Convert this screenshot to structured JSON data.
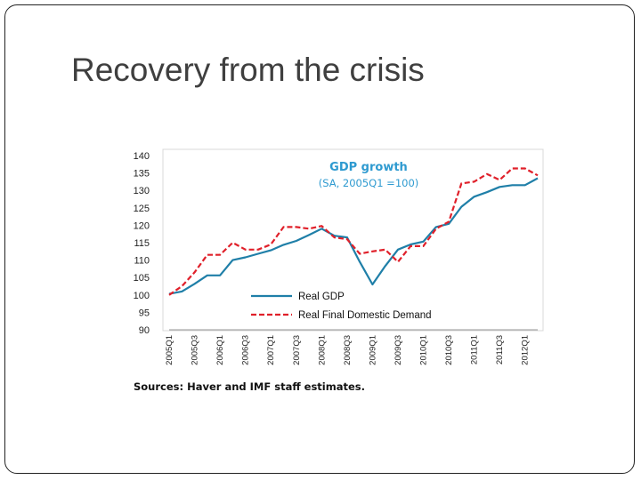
{
  "slide": {
    "title": "Recovery from the crisis"
  },
  "chart_data": {
    "type": "line",
    "title": "GDP growth",
    "subtitle": "(SA, 2005Q1  =100)",
    "title_color": "#2e9ad0",
    "ylim": [
      90,
      140
    ],
    "yticks": [
      90,
      95,
      100,
      105,
      110,
      115,
      120,
      125,
      130,
      135,
      140
    ],
    "categories": [
      "2005Q1",
      "2005Q2",
      "2005Q3",
      "2005Q4",
      "2006Q1",
      "2006Q2",
      "2006Q3",
      "2006Q4",
      "2007Q1",
      "2007Q2",
      "2007Q3",
      "2007Q4",
      "2008Q1",
      "2008Q2",
      "2008Q3",
      "2008Q4",
      "2009Q1",
      "2009Q2",
      "2009Q3",
      "2009Q4",
      "2010Q1",
      "2010Q2",
      "2010Q3",
      "2010Q4",
      "2011Q1",
      "2011Q2",
      "2011Q3",
      "2011Q4",
      "2012Q1",
      "2012Q2"
    ],
    "xtick_labels": [
      "2005Q1",
      "2005Q3",
      "2006Q1",
      "2006Q3",
      "2007Q1",
      "2007Q3",
      "2008Q1",
      "2008Q3",
      "2009Q1",
      "2009Q3",
      "2010Q1",
      "2010Q3",
      "2011Q1",
      "2011Q3",
      "2012Q1"
    ],
    "series": [
      {
        "name": "Real GDP",
        "color": "#1f7fa8",
        "style": "solid",
        "values": [
          100.3,
          101.0,
          103.2,
          105.6,
          105.6,
          110.0,
          110.8,
          111.8,
          112.8,
          114.4,
          115.5,
          117.2,
          119.0,
          117.0,
          116.5,
          109.5,
          103.0,
          108.3,
          113.0,
          114.5,
          115.3,
          119.5,
          120.4,
          125.3,
          128.2,
          129.5,
          131.0,
          131.5,
          131.5,
          133.5
        ]
      },
      {
        "name": "Real Final Domestic Demand",
        "color": "#e0202a",
        "style": "dashed",
        "values": [
          100.0,
          102.5,
          106.5,
          111.5,
          111.5,
          115.0,
          113.0,
          113.0,
          114.5,
          119.5,
          119.5,
          119.0,
          119.8,
          116.5,
          116.0,
          111.8,
          112.5,
          113.0,
          109.5,
          114.0,
          114.0,
          119.0,
          121.0,
          132.0,
          132.5,
          134.7,
          133.0,
          136.3,
          136.3,
          134.3
        ]
      }
    ],
    "source": "Sources: Haver and IMF staff estimates."
  }
}
